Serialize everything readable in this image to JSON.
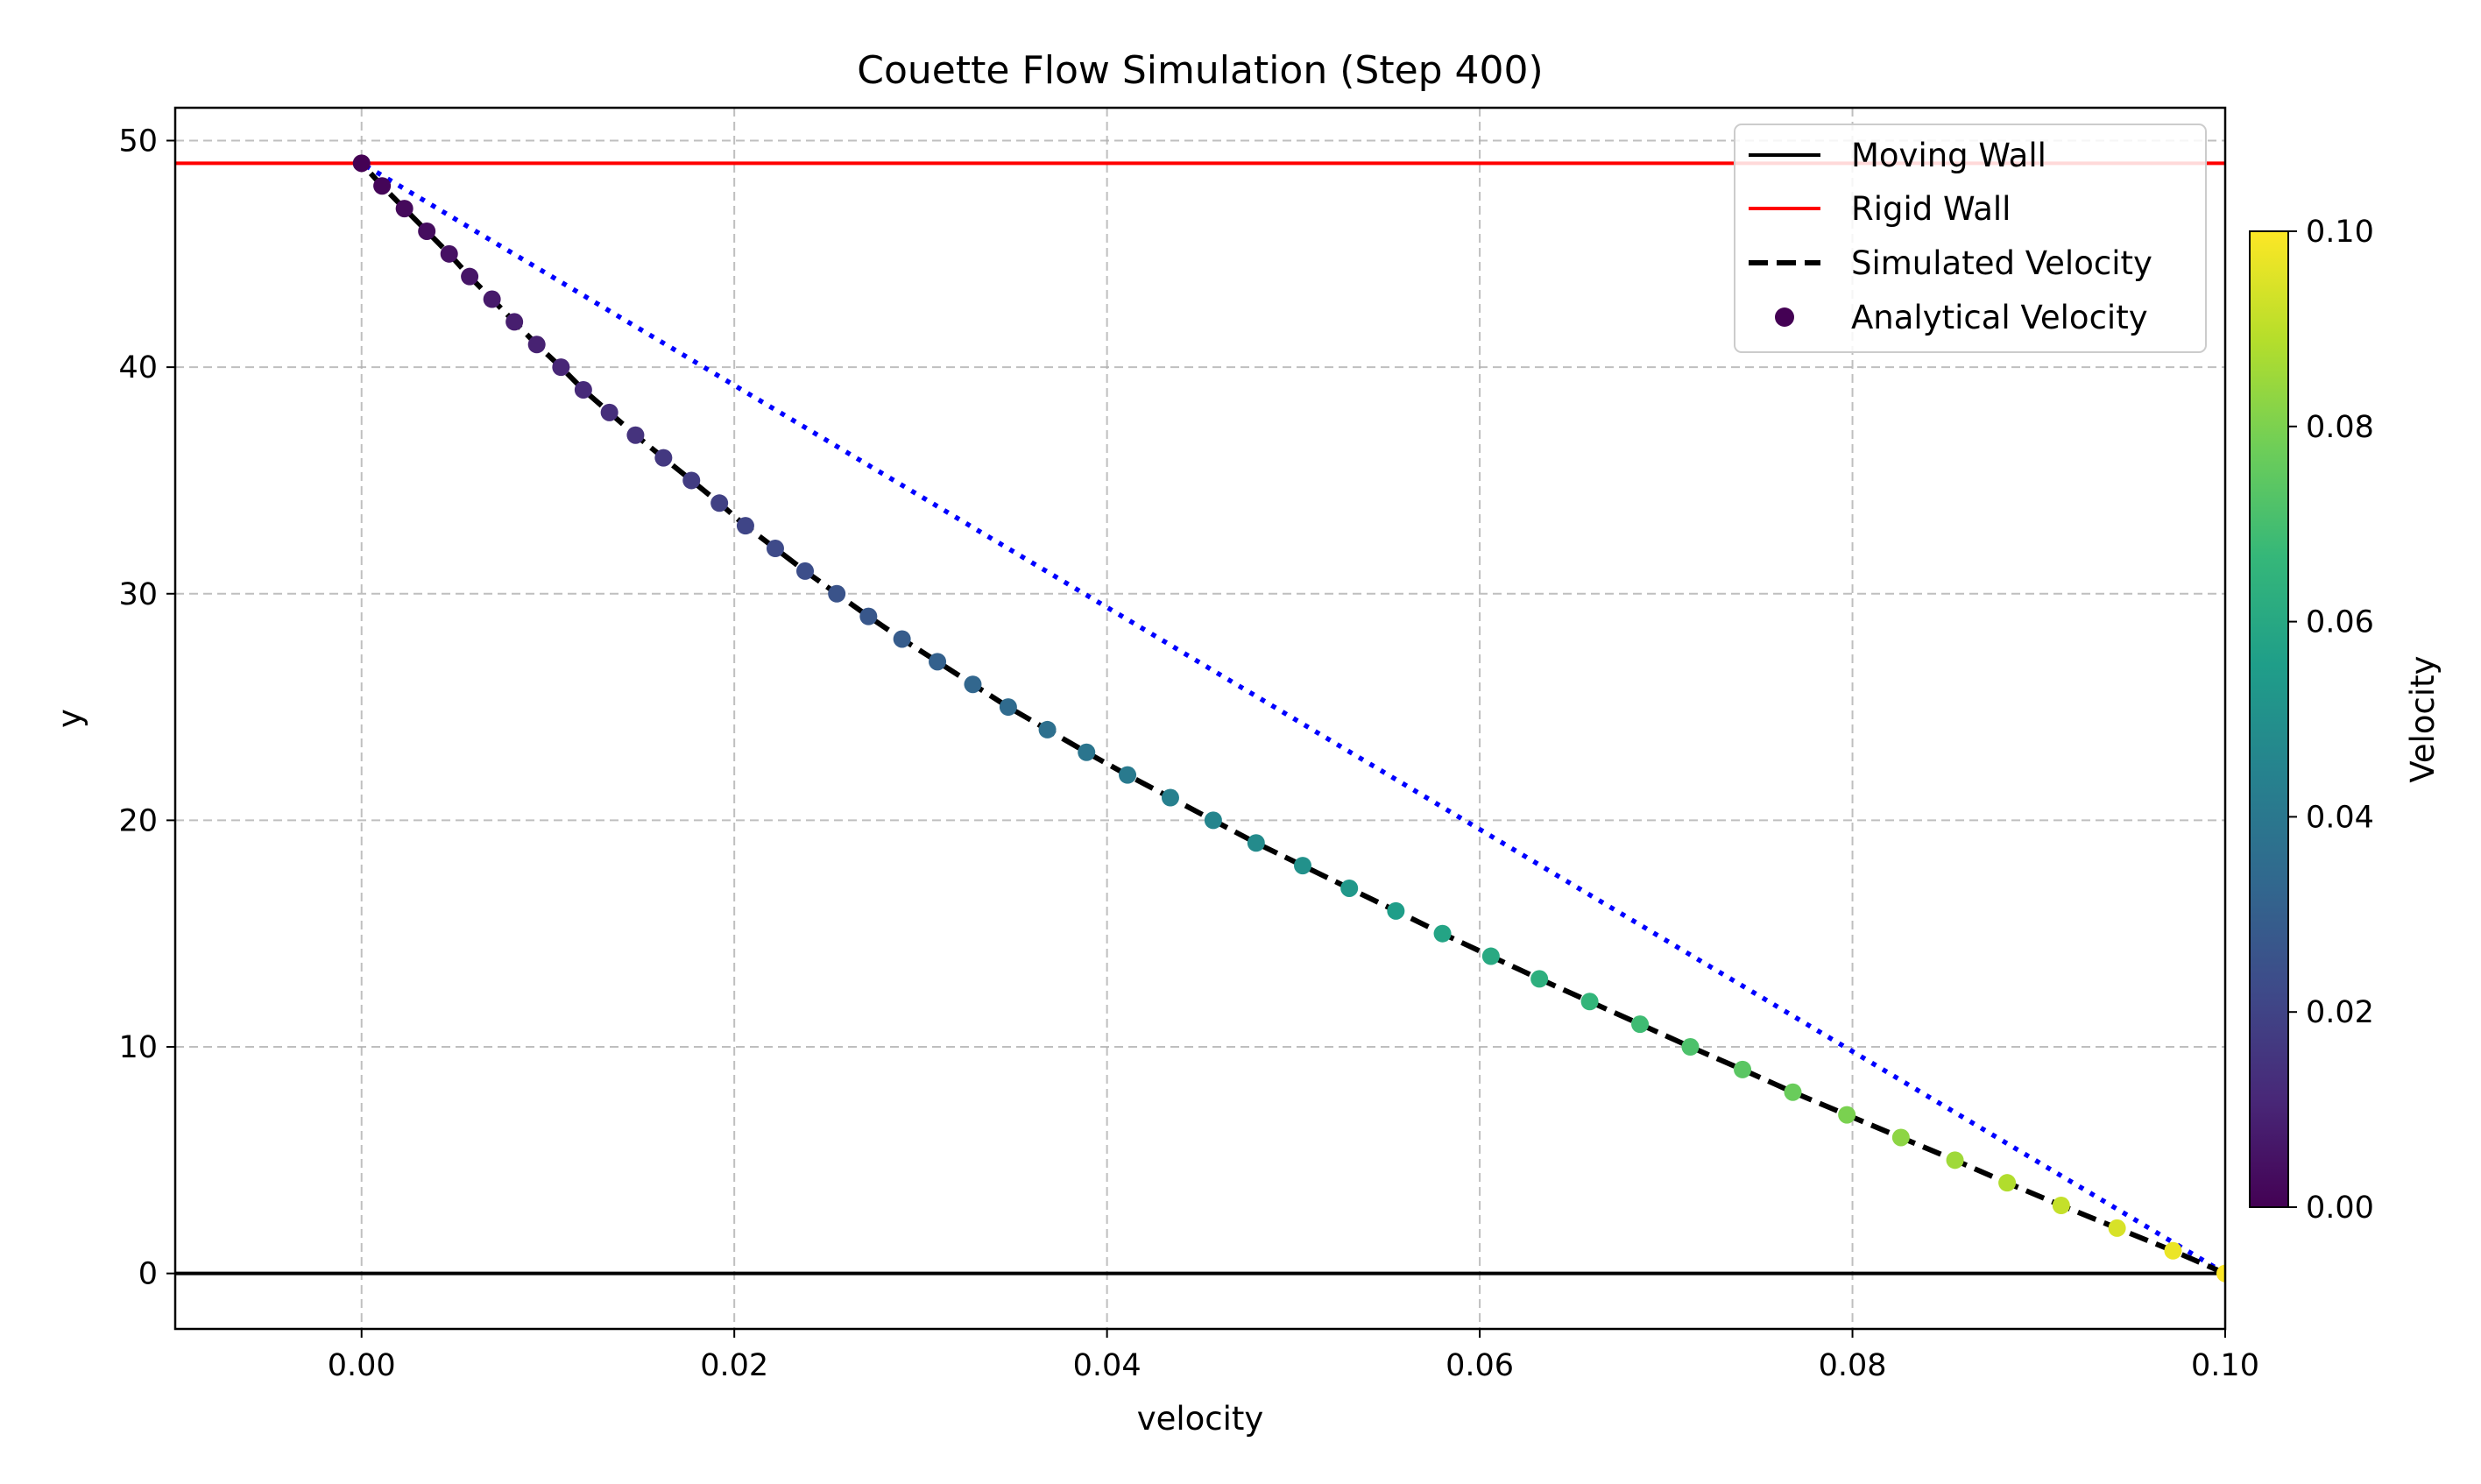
{
  "chart_data": {
    "type": "line",
    "title": "Couette Flow Simulation (Step 400)",
    "xlabel": "velocity",
    "ylabel": "y",
    "xlim": [
      -0.01,
      0.1
    ],
    "ylim": [
      -2.45,
      51.45
    ],
    "x_ticks": [
      0.0,
      0.02,
      0.04,
      0.06,
      0.08,
      0.1
    ],
    "x_tick_labels": [
      "0.00",
      "0.02",
      "0.04",
      "0.06",
      "0.08",
      "0.10"
    ],
    "y_ticks": [
      0,
      10,
      20,
      30,
      40,
      50
    ],
    "y_tick_labels": [
      "0",
      "10",
      "20",
      "30",
      "40",
      "50"
    ],
    "grid": true,
    "legend_position": "top-right",
    "legend": [
      {
        "label": "Moving Wall",
        "style": "solid",
        "color": "#000000"
      },
      {
        "label": "Rigid Wall",
        "style": "solid",
        "color": "#ff0000"
      },
      {
        "label": "Simulated Velocity",
        "style": "dashed",
        "color": "#000000"
      },
      {
        "label": "Analytical Velocity",
        "style": "marker",
        "color": "#440154"
      }
    ],
    "moving_wall": {
      "y": 0,
      "color": "#000000"
    },
    "rigid_wall": {
      "y": 49,
      "color": "#ff0000"
    },
    "linear_reference": {
      "x": [
        0.1,
        0.0
      ],
      "y": [
        0,
        49
      ],
      "color": "#0000ff",
      "style": "dotted"
    },
    "series": [
      {
        "name": "Simulated Velocity",
        "x": [
          0.1,
          0.0972,
          0.0942,
          0.0912,
          0.0883,
          0.0855,
          0.0826,
          0.0797,
          0.0768,
          0.0741,
          0.0713,
          0.0686,
          0.0659,
          0.0632,
          0.0606,
          0.058,
          0.0555,
          0.053,
          0.0505,
          0.048,
          0.0457,
          0.0434,
          0.0411,
          0.0389,
          0.0368,
          0.0347,
          0.0328,
          0.0309,
          0.029,
          0.0272,
          0.0255,
          0.0238,
          0.0222,
          0.0206,
          0.0192,
          0.0177,
          0.0162,
          0.0147,
          0.0133,
          0.0119,
          0.0107,
          0.0094,
          0.0082,
          0.007,
          0.0058,
          0.0047,
          0.0035,
          0.0023,
          0.0011,
          0.0
        ],
        "y": [
          0,
          1,
          2,
          3,
          4,
          5,
          6,
          7,
          8,
          9,
          10,
          11,
          12,
          13,
          14,
          15,
          16,
          17,
          18,
          19,
          20,
          21,
          22,
          23,
          24,
          25,
          26,
          27,
          28,
          29,
          30,
          31,
          32,
          33,
          34,
          35,
          36,
          37,
          38,
          39,
          40,
          41,
          42,
          43,
          44,
          45,
          46,
          47,
          48,
          49
        ]
      }
    ],
    "colorbar": {
      "label": "Velocity",
      "min": 0.0,
      "max": 0.1,
      "ticks": [
        0.0,
        0.02,
        0.04,
        0.06,
        0.08,
        0.1
      ],
      "tick_labels": [
        "0.00",
        "0.02",
        "0.04",
        "0.06",
        "0.08",
        "0.10"
      ],
      "colormap": "viridis",
      "stops": [
        "#440154",
        "#482878",
        "#3e4a89",
        "#31688e",
        "#26828e",
        "#1f9e89",
        "#35b779",
        "#6ece58",
        "#b5de2b",
        "#fde725"
      ]
    }
  }
}
